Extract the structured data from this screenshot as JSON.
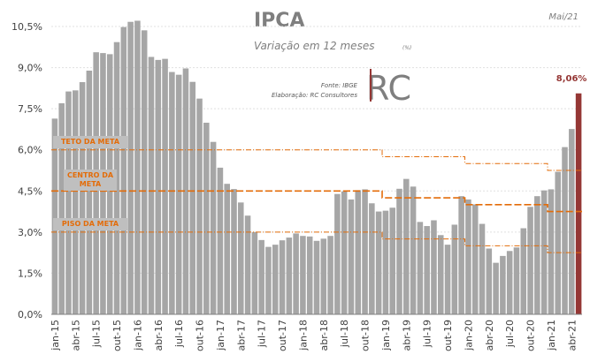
{
  "chart_data": {
    "type": "bar",
    "title": "IPCA",
    "subtitle": "Variação em 12 meses",
    "unit_note": "(%)",
    "date_note": "Mai/21",
    "source": "Fonte: IBGE",
    "credit": "Elaboração: RC Consultores",
    "logo": "RC",
    "categories": [
      "jan-15",
      null,
      null,
      "abr-15",
      null,
      null,
      "jul-15",
      null,
      null,
      "out-15",
      null,
      null,
      "jan-16",
      null,
      null,
      "abr-16",
      null,
      null,
      "jul-16",
      null,
      null,
      "out-16",
      null,
      null,
      "jan-17",
      null,
      null,
      "abr-17",
      null,
      null,
      "jul-17",
      null,
      null,
      "out-17",
      null,
      null,
      "jan-18",
      null,
      null,
      "abr-18",
      null,
      null,
      "jul-18",
      null,
      null,
      "out-18",
      null,
      null,
      "jan-19",
      null,
      null,
      "abr-19",
      null,
      null,
      "jul-19",
      null,
      null,
      "out-19",
      null,
      null,
      "jan-20",
      null,
      null,
      "abr-20",
      null,
      null,
      "jul-20",
      null,
      null,
      "out-20",
      null,
      null,
      "jan-21",
      null,
      null,
      "abr-21",
      null
    ],
    "values": [
      7.14,
      7.7,
      8.13,
      8.17,
      8.47,
      8.89,
      9.56,
      9.53,
      9.49,
      9.93,
      10.48,
      10.67,
      10.71,
      10.36,
      9.39,
      9.28,
      9.32,
      8.84,
      8.74,
      8.97,
      8.48,
      7.87,
      6.99,
      6.29,
      5.35,
      4.76,
      4.57,
      4.08,
      3.6,
      3.0,
      2.71,
      2.46,
      2.54,
      2.7,
      2.8,
      2.95,
      2.86,
      2.84,
      2.68,
      2.76,
      2.86,
      4.39,
      4.48,
      4.19,
      4.53,
      4.56,
      4.05,
      3.75,
      3.78,
      3.89,
      4.58,
      4.94,
      4.66,
      3.37,
      3.22,
      3.43,
      2.89,
      2.54,
      3.27,
      4.31,
      4.19,
      4.01,
      3.3,
      2.4,
      1.88,
      2.13,
      2.31,
      2.44,
      3.14,
      3.92,
      4.31,
      4.52,
      4.56,
      5.2,
      6.1,
      6.76,
      8.06
    ],
    "value_labels": [
      null,
      null,
      null,
      null,
      null,
      null,
      null,
      null,
      null,
      null,
      null,
      null,
      null,
      null,
      null,
      null,
      null,
      null,
      null,
      null,
      null,
      null,
      null,
      null,
      null,
      null,
      null,
      null,
      null,
      null,
      null,
      null,
      null,
      null,
      null,
      null,
      null,
      null,
      null,
      null,
      null,
      null,
      null,
      null,
      null,
      null,
      null,
      null,
      null,
      null,
      null,
      null,
      null,
      null,
      null,
      null,
      null,
      null,
      null,
      null,
      null,
      null,
      null,
      null,
      null,
      null,
      null,
      null,
      null,
      null,
      null,
      null,
      null,
      null,
      null,
      null,
      "8,06%"
    ],
    "color": "#a6a6a6",
    "highlight_color": "#953735",
    "target_lines": [
      {
        "name": "TETO DA META",
        "color": "#e36c09",
        "values": [
          6,
          6,
          6,
          6,
          6,
          6,
          6,
          6,
          6,
          6,
          6,
          6,
          6,
          6,
          6,
          6,
          6,
          6,
          6,
          6,
          6,
          6,
          6,
          6,
          6,
          6,
          6,
          6,
          6,
          6,
          6,
          6,
          6,
          6,
          6,
          6,
          6,
          6,
          6,
          6,
          6,
          6,
          6,
          6,
          6,
          6,
          6,
          6,
          5.75,
          5.75,
          5.75,
          5.75,
          5.75,
          5.75,
          5.75,
          5.75,
          5.75,
          5.75,
          5.75,
          5.75,
          5.5,
          5.5,
          5.5,
          5.5,
          5.5,
          5.5,
          5.5,
          5.5,
          5.5,
          5.5,
          5.5,
          5.5,
          5.25,
          5.25,
          5.25,
          5.25,
          5.25
        ]
      },
      {
        "name": "CENTRO DA META",
        "color": "#e36c09",
        "values": [
          4.5,
          4.5,
          4.5,
          4.5,
          4.5,
          4.5,
          4.5,
          4.5,
          4.5,
          4.5,
          4.5,
          4.5,
          4.5,
          4.5,
          4.5,
          4.5,
          4.5,
          4.5,
          4.5,
          4.5,
          4.5,
          4.5,
          4.5,
          4.5,
          4.5,
          4.5,
          4.5,
          4.5,
          4.5,
          4.5,
          4.5,
          4.5,
          4.5,
          4.5,
          4.5,
          4.5,
          4.5,
          4.5,
          4.5,
          4.5,
          4.5,
          4.5,
          4.5,
          4.5,
          4.5,
          4.5,
          4.5,
          4.5,
          4.25,
          4.25,
          4.25,
          4.25,
          4.25,
          4.25,
          4.25,
          4.25,
          4.25,
          4.25,
          4.25,
          4.25,
          4,
          4,
          4,
          4,
          4,
          4,
          4,
          4,
          4,
          4,
          4,
          4,
          3.75,
          3.75,
          3.75,
          3.75,
          3.75
        ]
      },
      {
        "name": "PISO DA META",
        "color": "#e36c09",
        "values": [
          3,
          3,
          3,
          3,
          3,
          3,
          3,
          3,
          3,
          3,
          3,
          3,
          3,
          3,
          3,
          3,
          3,
          3,
          3,
          3,
          3,
          3,
          3,
          3,
          3,
          3,
          3,
          3,
          3,
          3,
          3,
          3,
          3,
          3,
          3,
          3,
          3,
          3,
          3,
          3,
          3,
          3,
          3,
          3,
          3,
          3,
          3,
          3,
          2.75,
          2.75,
          2.75,
          2.75,
          2.75,
          2.75,
          2.75,
          2.75,
          2.75,
          2.75,
          2.75,
          2.75,
          2.5,
          2.5,
          2.5,
          2.5,
          2.5,
          2.5,
          2.5,
          2.5,
          2.5,
          2.5,
          2.5,
          2.5,
          2.25,
          2.25,
          2.25,
          2.25,
          2.25
        ]
      }
    ],
    "ylim": [
      0,
      10.5
    ],
    "yticks": [
      {
        "value": 0,
        "label": "0,0%"
      },
      {
        "value": 1.5,
        "label": "1,5%"
      },
      {
        "value": 3,
        "label": "3,0%"
      },
      {
        "value": 4.5,
        "label": "4,5%"
      },
      {
        "value": 6,
        "label": "6,0%"
      },
      {
        "value": 7.5,
        "label": "7,5%"
      },
      {
        "value": 9,
        "label": "9,0%"
      },
      {
        "value": 10.5,
        "label": "10,5%"
      }
    ],
    "grid": true
  }
}
